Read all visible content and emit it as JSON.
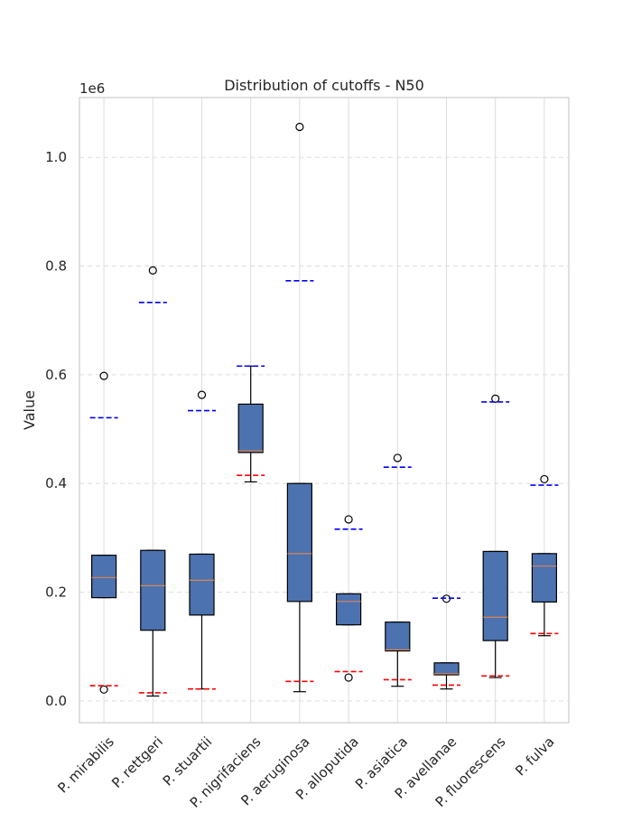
{
  "chart_data": {
    "type": "box",
    "title": "Distribution of cutoffs - N50",
    "xlabel": "",
    "ylabel": "Value",
    "y_scale_label": "1e6",
    "ylim": [
      -40000,
      1110000
    ],
    "yticks": [
      0.0,
      0.2,
      0.4,
      0.6,
      0.8,
      1.0
    ],
    "ytick_labels": [
      "0.0",
      "0.2",
      "0.4",
      "0.6",
      "0.8",
      "1.0"
    ],
    "grid": true,
    "colors": {
      "box_fill": "#4c72b0",
      "median": "#dd8452",
      "upper_cutoff": "#0000ff",
      "lower_cutoff": "#ff0000",
      "grid": "#dddddd"
    },
    "series": [
      {
        "category": "P. mirabilis",
        "whislo": 190000,
        "q1": 190000,
        "median": 227000,
        "q3": 268000,
        "whishi": 268000,
        "fliers": [
          598000,
          21000
        ],
        "upper_cutoff": 521000,
        "lower_cutoff": 28000
      },
      {
        "category": "P. rettgeri",
        "whislo": 9000,
        "q1": 130000,
        "median": 212000,
        "q3": 277000,
        "whishi": 277000,
        "fliers": [
          792000
        ],
        "upper_cutoff": 733000,
        "lower_cutoff": 15000
      },
      {
        "category": "P. stuartii",
        "whislo": 22000,
        "q1": 158000,
        "median": 222000,
        "q3": 270000,
        "whishi": 270000,
        "fliers": [
          563000
        ],
        "upper_cutoff": 534000,
        "lower_cutoff": 22000
      },
      {
        "category": "P. nigrifaciens",
        "whislo": 403000,
        "q1": 457000,
        "median": 460000,
        "q3": 546000,
        "whishi": 616000,
        "fliers": [],
        "upper_cutoff": 616000,
        "lower_cutoff": 415000
      },
      {
        "category": "P. aeruginosa",
        "whislo": 17000,
        "q1": 183000,
        "median": 271000,
        "q3": 400000,
        "whishi": 400000,
        "fliers": [
          1056000
        ],
        "upper_cutoff": 773000,
        "lower_cutoff": 36000
      },
      {
        "category": "P. alloputida",
        "whislo": 140000,
        "q1": 140000,
        "median": 183000,
        "q3": 197000,
        "whishi": 197000,
        "fliers": [
          334000,
          43000
        ],
        "upper_cutoff": 316000,
        "lower_cutoff": 54000
      },
      {
        "category": "P. asiatica",
        "whislo": 27000,
        "q1": 92000,
        "median": 94000,
        "q3": 145000,
        "whishi": 145000,
        "fliers": [
          447000
        ],
        "upper_cutoff": 430000,
        "lower_cutoff": 39000
      },
      {
        "category": "P. avellanae",
        "whislo": 22000,
        "q1": 48000,
        "median": 50000,
        "q3": 70000,
        "whishi": 70000,
        "fliers": [
          188000
        ],
        "upper_cutoff": 189000,
        "lower_cutoff": 29000
      },
      {
        "category": "P. fluorescens",
        "whislo": 43000,
        "q1": 111000,
        "median": 154000,
        "q3": 275000,
        "whishi": 275000,
        "fliers": [
          556000
        ],
        "upper_cutoff": 550000,
        "lower_cutoff": 46000
      },
      {
        "category": "P. fulva",
        "whislo": 120000,
        "q1": 182000,
        "median": 248000,
        "q3": 271000,
        "whishi": 271000,
        "fliers": [
          408000
        ],
        "upper_cutoff": 397000,
        "lower_cutoff": 124000
      }
    ]
  }
}
